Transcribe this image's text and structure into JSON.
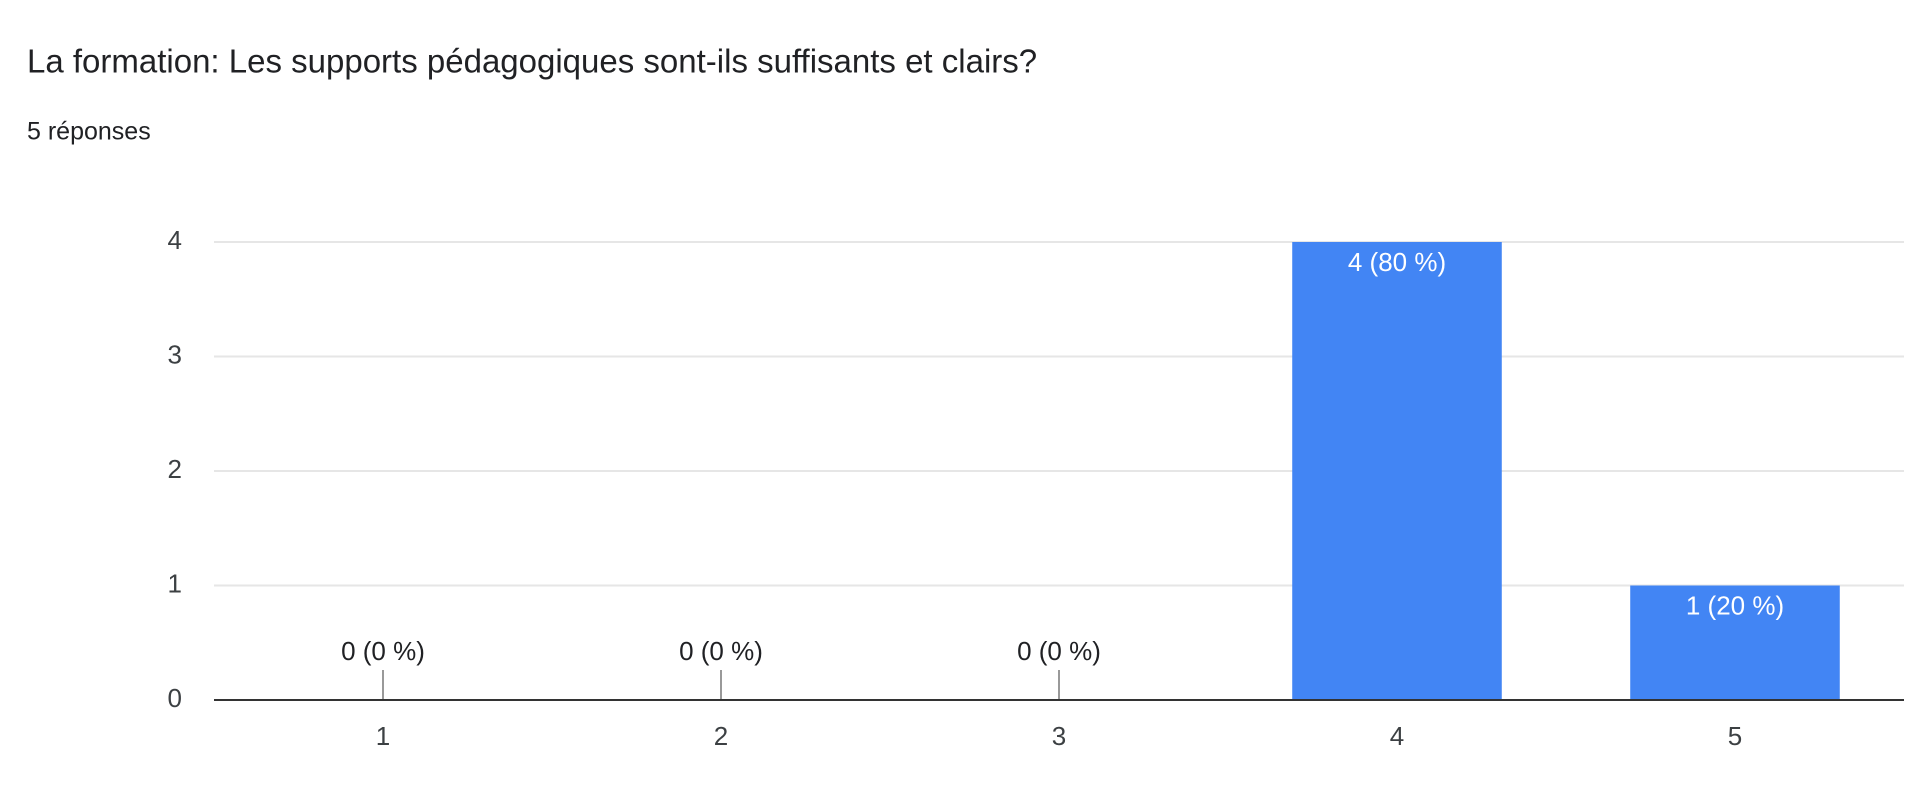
{
  "chart_data": {
    "type": "bar",
    "title": "La formation: Les supports pédagogiques sont-ils suffisants et clairs?",
    "subtitle": "5 réponses",
    "categories": [
      "1",
      "2",
      "3",
      "4",
      "5"
    ],
    "values": [
      0,
      0,
      0,
      4,
      1
    ],
    "value_labels": [
      "0 (0 %)",
      "0 (0 %)",
      "0 (0 %)",
      "4 (80 %)",
      "1 (20 %)"
    ],
    "color": "#4285f4",
    "ylim": [
      0,
      4
    ],
    "yticks": [
      0,
      1,
      2,
      3,
      4
    ],
    "grid": true
  }
}
